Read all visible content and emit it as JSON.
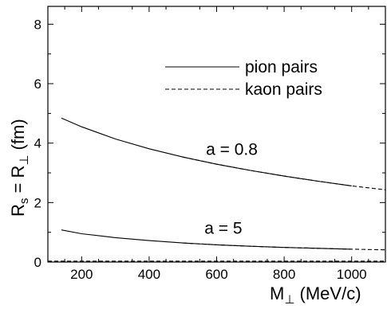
{
  "chart_data": {
    "type": "line",
    "title": "",
    "xlabel": {
      "main": "M",
      "sub": "⊥",
      "unit": " (MeV/c)"
    },
    "ylabel": {
      "r1": "R",
      "r1_sub": "s",
      "equals": " = ",
      "r2": "R",
      "r2_sub": "⊥",
      "unit": " (fm)"
    },
    "xlim": [
      100,
      1100
    ],
    "ylim": [
      0,
      8.6
    ],
    "xticks": [
      200,
      400,
      600,
      800,
      1000
    ],
    "yticks": [
      0,
      2,
      4,
      6,
      8
    ],
    "grid": false,
    "legend_position": "top-right",
    "series": [
      {
        "name": "pion pairs",
        "style": "solid",
        "color": "#000000",
        "x": [
          140,
          200,
          300,
          400,
          500,
          600,
          700,
          800,
          900,
          1000
        ],
        "values": [
          4.84,
          4.55,
          4.14,
          3.81,
          3.53,
          3.29,
          3.08,
          2.89,
          2.72,
          2.56
        ]
      },
      {
        "name": "kaon pairs",
        "style": "dashed",
        "color": "#000000",
        "x": [
          500,
          600,
          700,
          800,
          900,
          1000,
          1100
        ],
        "values": [
          3.53,
          3.29,
          3.08,
          2.89,
          2.72,
          2.56,
          2.43
        ]
      },
      {
        "name": "",
        "style": "solid",
        "color": "#000000",
        "x": [
          140,
          200,
          300,
          400,
          500,
          600,
          700,
          800,
          900,
          1000
        ],
        "values": [
          1.08,
          0.95,
          0.82,
          0.72,
          0.64,
          0.58,
          0.53,
          0.49,
          0.46,
          0.43
        ]
      },
      {
        "name": "",
        "style": "dashed",
        "color": "#000000",
        "x": [
          500,
          600,
          700,
          800,
          900,
          1000,
          1100
        ],
        "values": [
          0.64,
          0.58,
          0.53,
          0.49,
          0.46,
          0.43,
          0.41
        ]
      },
      {
        "name": "",
        "style": "dashed",
        "color": "#000000",
        "x": [
          100,
          1100
        ],
        "values": [
          0.03,
          0.03
        ]
      }
    ],
    "annotations": [
      {
        "text": "a = 0.8",
        "x": 645,
        "y": 3.6
      },
      {
        "text": "a = 5",
        "x": 620,
        "y": 0.95
      }
    ]
  }
}
